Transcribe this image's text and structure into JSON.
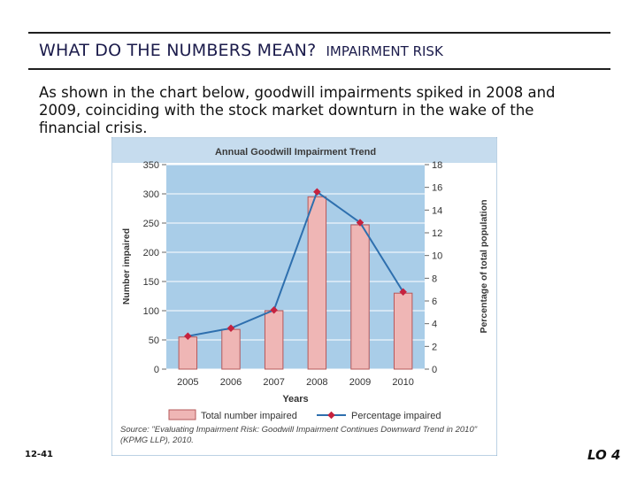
{
  "header": {
    "title": "WHAT DO THE NUMBERS MEAN?",
    "subtitle": "IMPAIRMENT RISK"
  },
  "intro_text": "As shown in the chart below, goodwill impairments spiked in 2008 and 2009, coinciding with the stock market downturn in the wake of the financial crisis.",
  "footer": {
    "slide_number": "12-41",
    "learning_objective": "LO 4"
  },
  "colors": {
    "plot_bg": "#a9cde8",
    "bar_fill": "#efb6b5",
    "bar_stroke": "#b5585a",
    "line_color": "#2e6fae",
    "marker_color": "#c6223e",
    "title_bar": "#c6dcee"
  },
  "chart_data": {
    "type": "bar+line",
    "title": "Annual Goodwill Impairment Trend",
    "categories": [
      "2005",
      "2006",
      "2007",
      "2008",
      "2009",
      "2010"
    ],
    "series": [
      {
        "name": "Total number impaired",
        "type": "bar",
        "axis": "left",
        "values": [
          55,
          68,
          100,
          295,
          247,
          130
        ]
      },
      {
        "name": "Percentage impaired",
        "type": "line",
        "axis": "right",
        "values": [
          2.9,
          3.6,
          5.2,
          15.6,
          12.9,
          6.8
        ]
      }
    ],
    "xlabel": "Years",
    "ylabel": "Number impaired",
    "y2label": "Percentage of total population",
    "ylim": [
      0,
      350
    ],
    "yticks": [
      "0",
      "50",
      "100",
      "150",
      "200",
      "250",
      "300",
      "350"
    ],
    "y2lim": [
      0,
      18
    ],
    "y2ticks": [
      "0",
      "2",
      "4",
      "6",
      "8",
      "10",
      "12",
      "14",
      "16",
      "18"
    ],
    "source": "Source: \"Evaluating Impairment Risk: Goodwill Impairment Continues Downward Trend in 2010\" (KPMG LLP), 2010."
  }
}
